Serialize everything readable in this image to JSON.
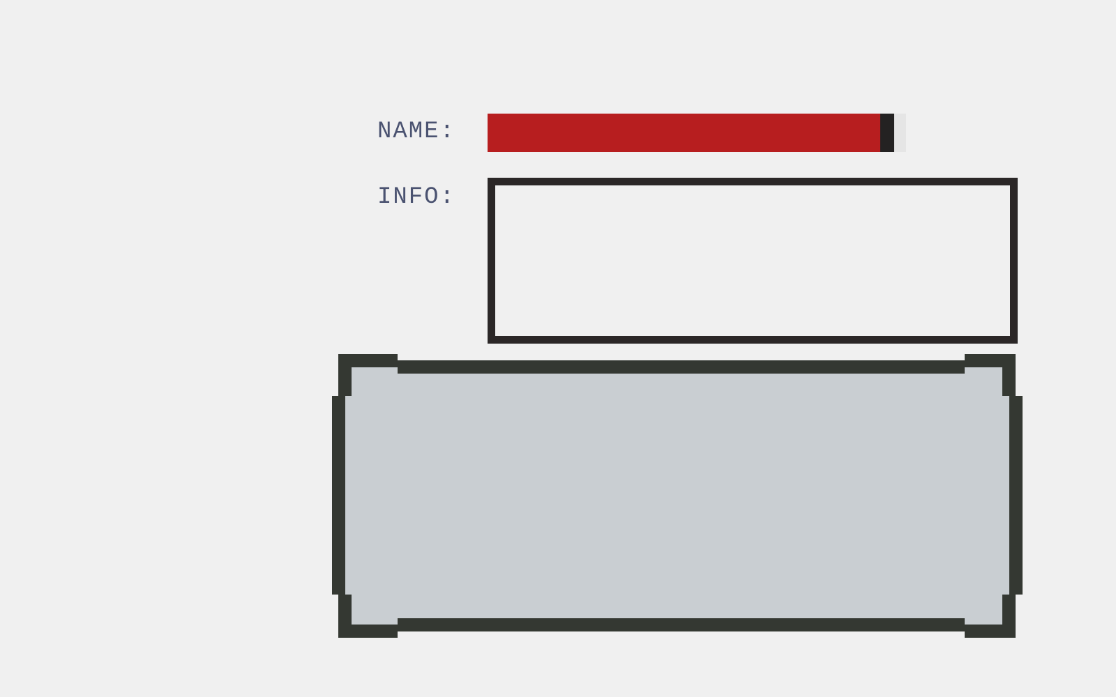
{
  "form": {
    "name_label": "NAME:",
    "info_label": "INFO:",
    "name_value": "",
    "info_value": "",
    "name_fill_fraction": 0.97
  },
  "colors": {
    "background": "#f0f0f0",
    "label_text": "#4a5270",
    "name_fill": "#b71e1f",
    "cursor": "#242222",
    "info_border": "#2b2727",
    "panel_border": "#343832",
    "panel_fill": "#c9ced2"
  }
}
